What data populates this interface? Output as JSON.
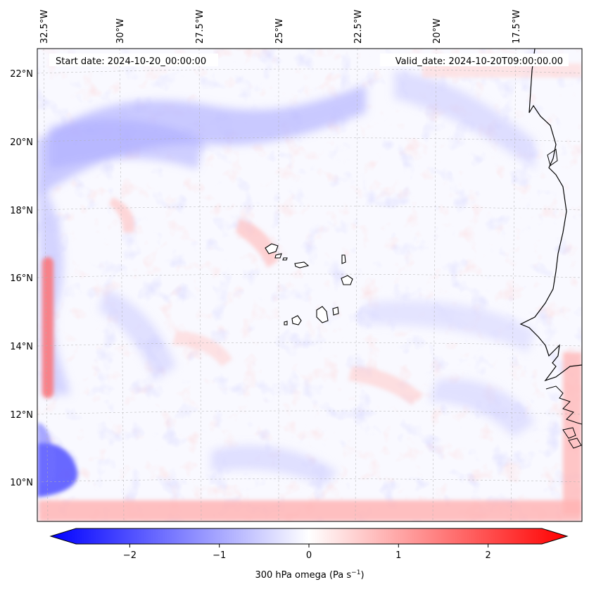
{
  "map": {
    "start_date": "Start date: 2024-10-20_00:00:00",
    "valid_date": "Valid_date: 2024-10-20T09:00:00.00",
    "lon_ticks": [
      "32.5°W",
      "30°W",
      "27.5°W",
      "25°W",
      "22.5°W",
      "20°W",
      "17.5°W"
    ],
    "lat_ticks": [
      "22°N",
      "20°N",
      "18°N",
      "16°N",
      "14°N",
      "12°N",
      "10°N"
    ],
    "features": [
      "Cape Verde islands",
      "West African coastline"
    ]
  },
  "colorbar": {
    "label_main": "300 hPa omega (Pa s",
    "label_sup": "−1",
    "label_end": ")",
    "ticks": [
      "−2",
      "−1",
      "0",
      "1",
      "2"
    ],
    "tick_values": [
      -2,
      -1,
      0,
      1,
      2
    ],
    "range": [
      -2.6,
      2.6
    ],
    "colormap": "bwr",
    "colors": {
      "min": "#0000ff",
      "mid": "#ffffff",
      "max": "#ff0000"
    }
  }
}
